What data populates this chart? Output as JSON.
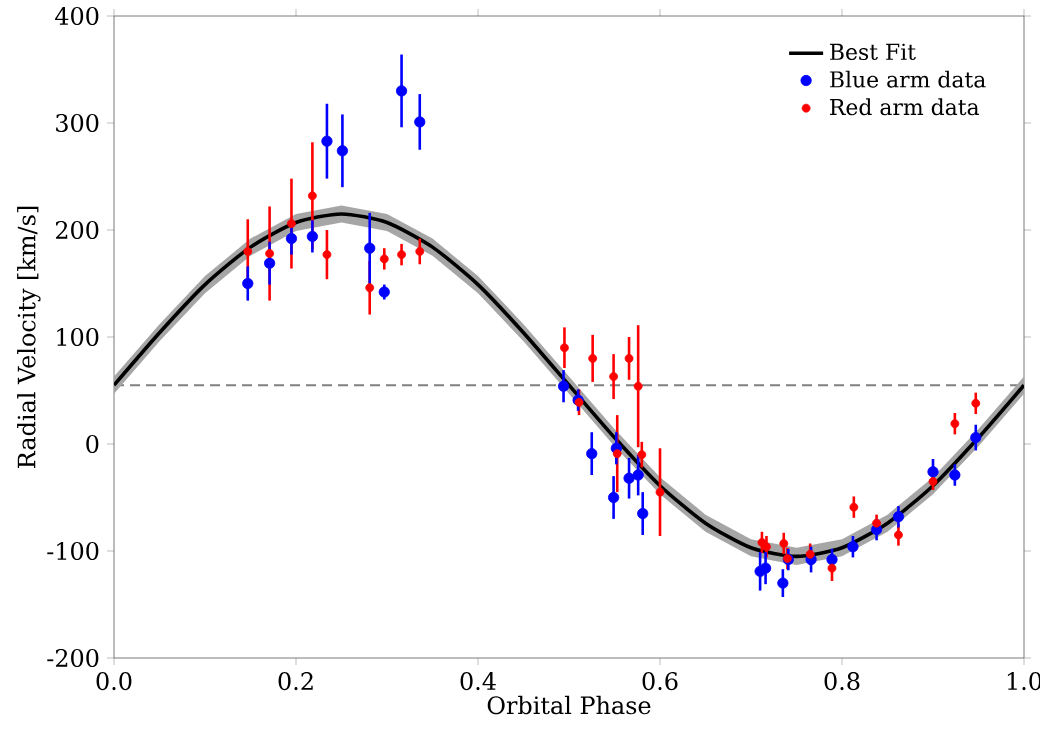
{
  "chart_data": {
    "type": "scatter",
    "xlabel": "Orbital Phase",
    "ylabel": "Radial Velocity [km/s]",
    "xlim": [
      0,
      1
    ],
    "ylim": [
      -200,
      400
    ],
    "xticks": [
      {
        "value": 0,
        "label": "0.0"
      },
      {
        "value": 0.2,
        "label": "0.2"
      },
      {
        "value": 0.4,
        "label": "0.4"
      },
      {
        "value": 0.6,
        "label": "0.6"
      },
      {
        "value": 0.8,
        "label": "0.8"
      },
      {
        "value": 1,
        "label": "1.0"
      }
    ],
    "yticks": [
      -200,
      -100,
      0,
      100,
      200,
      300,
      400
    ],
    "grid": false,
    "legend": "top right",
    "ref_lines": [
      {
        "axis": "y",
        "value": 55,
        "color": "#808080",
        "line_style": "dashed"
      }
    ],
    "series": [
      {
        "name": "Best Fit",
        "type": "line",
        "marker": "none",
        "color": "#000000",
        "x": [
          0,
          0.05,
          0.1,
          0.15,
          0.2,
          0.25,
          0.3,
          0.35,
          0.4,
          0.45,
          0.5,
          0.55,
          0.6,
          0.65,
          0.7,
          0.75,
          0.8,
          0.85,
          0.9,
          0.95,
          1
        ],
        "values": [
          55,
          104,
          149,
          184,
          207,
          215,
          207,
          184,
          149,
          104,
          55,
          6,
          -39,
          -74,
          -97,
          -105,
          -97,
          -74,
          -39,
          6,
          55
        ],
        "lower": [
          47,
          96,
          141,
          176,
          199,
          207,
          199,
          176,
          141,
          96,
          47,
          -2,
          -47,
          -82,
          -105,
          -113,
          -105,
          -82,
          -47,
          -2,
          47
        ],
        "upper": [
          63,
          112,
          157,
          192,
          215,
          223,
          215,
          192,
          157,
          112,
          63,
          14,
          -31,
          -66,
          -89,
          -97,
          -89,
          -66,
          -31,
          14,
          63
        ]
      },
      {
        "name": "Blue arm data",
        "marker": "circle",
        "color": "#0000ff",
        "x": [
          0.147,
          0.171,
          0.195,
          0.218,
          0.234,
          0.251,
          0.281,
          0.297,
          0.316,
          0.336,
          0.494,
          0.51,
          0.525,
          0.549,
          0.552,
          0.566,
          0.576,
          0.581,
          0.71,
          0.716,
          0.735,
          0.741,
          0.766,
          0.789,
          0.812,
          0.838,
          0.862,
          0.9,
          0.924,
          0.947
        ],
        "values": [
          150,
          169,
          192,
          194,
          283,
          274,
          183,
          142,
          330,
          301,
          54,
          41,
          -9,
          -50,
          -4,
          -32,
          -29,
          -65,
          -119,
          -116,
          -130,
          -108,
          -108,
          -108,
          -96,
          -80,
          -68,
          -26,
          -29,
          6
        ],
        "errors": [
          16,
          20,
          15,
          15,
          35,
          34,
          33,
          7,
          34,
          26,
          15,
          10,
          20,
          20,
          15,
          19,
          19,
          20,
          18,
          15,
          13,
          10,
          12,
          10,
          10,
          10,
          10,
          12,
          10,
          12
        ]
      },
      {
        "name": "Red arm data",
        "marker": "circle",
        "color": "#ff0000",
        "x": [
          0.147,
          0.171,
          0.195,
          0.218,
          0.234,
          0.281,
          0.297,
          0.316,
          0.336,
          0.495,
          0.511,
          0.526,
          0.549,
          0.553,
          0.566,
          0.576,
          0.58,
          0.6,
          0.712,
          0.717,
          0.736,
          0.74,
          0.765,
          0.789,
          0.813,
          0.838,
          0.862,
          0.9,
          0.924,
          0.947
        ],
        "values": [
          180,
          178,
          206,
          232,
          177,
          146,
          173,
          177,
          180,
          90,
          39,
          80,
          63,
          -9,
          80,
          54,
          -10,
          -45,
          -92,
          -96,
          -93,
          -107,
          -103,
          -116,
          -59,
          -74,
          -85,
          -35,
          19,
          38
        ],
        "errors": [
          30,
          44,
          42,
          50,
          23,
          25,
          10,
          10,
          12,
          19,
          12,
          22,
          21,
          36,
          20,
          57,
          12,
          41,
          10,
          10,
          10,
          10,
          10,
          12,
          10,
          8,
          10,
          8,
          10,
          10
        ]
      }
    ]
  }
}
